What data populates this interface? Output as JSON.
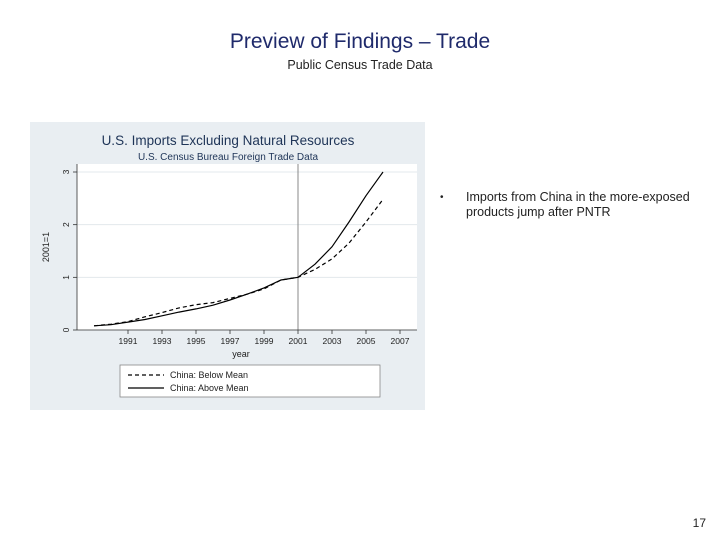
{
  "slide": {
    "title": "Preview of Findings – Trade",
    "subtitle": "Public Census Trade Data",
    "bullet": "Imports from China in the more-exposed products jump after PNTR",
    "page_number": "17"
  },
  "chart_data": {
    "type": "line",
    "title": "U.S. Imports Excluding Natural Resources",
    "subtitle": "U.S. Census Bureau Foreign Trade Data",
    "xlabel": "year",
    "ylabel": "2001=1",
    "xlim": [
      1988,
      2008
    ],
    "ylim": [
      0,
      3
    ],
    "x_ticks": [
      1991,
      1993,
      1995,
      1997,
      1999,
      2001,
      2003,
      2005,
      2007
    ],
    "y_ticks": [
      0,
      1,
      2,
      3
    ],
    "vertical_line_at": 2001,
    "legend_position": "bottom",
    "grid": true,
    "series": [
      {
        "name": "China: Below Mean",
        "style": "dashed",
        "color": "#000000",
        "x": [
          1989,
          1990,
          1991,
          1992,
          1993,
          1994,
          1995,
          1996,
          1997,
          1998,
          1999,
          2000,
          2001,
          2002,
          2003,
          2004,
          2005,
          2006
        ],
        "y": [
          0.08,
          0.11,
          0.16,
          0.25,
          0.33,
          0.42,
          0.48,
          0.52,
          0.6,
          0.68,
          0.78,
          0.95,
          1.0,
          1.15,
          1.35,
          1.65,
          2.05,
          2.48
        ]
      },
      {
        "name": "China: Above Mean",
        "style": "solid",
        "color": "#000000",
        "x": [
          1989,
          1990,
          1991,
          1992,
          1993,
          1994,
          1995,
          1996,
          1997,
          1998,
          1999,
          2000,
          2001,
          2002,
          2003,
          2004,
          2005,
          2006
        ],
        "y": [
          0.08,
          0.1,
          0.15,
          0.2,
          0.27,
          0.34,
          0.4,
          0.47,
          0.57,
          0.68,
          0.8,
          0.95,
          1.0,
          1.25,
          1.58,
          2.05,
          2.55,
          3.0
        ]
      }
    ]
  }
}
